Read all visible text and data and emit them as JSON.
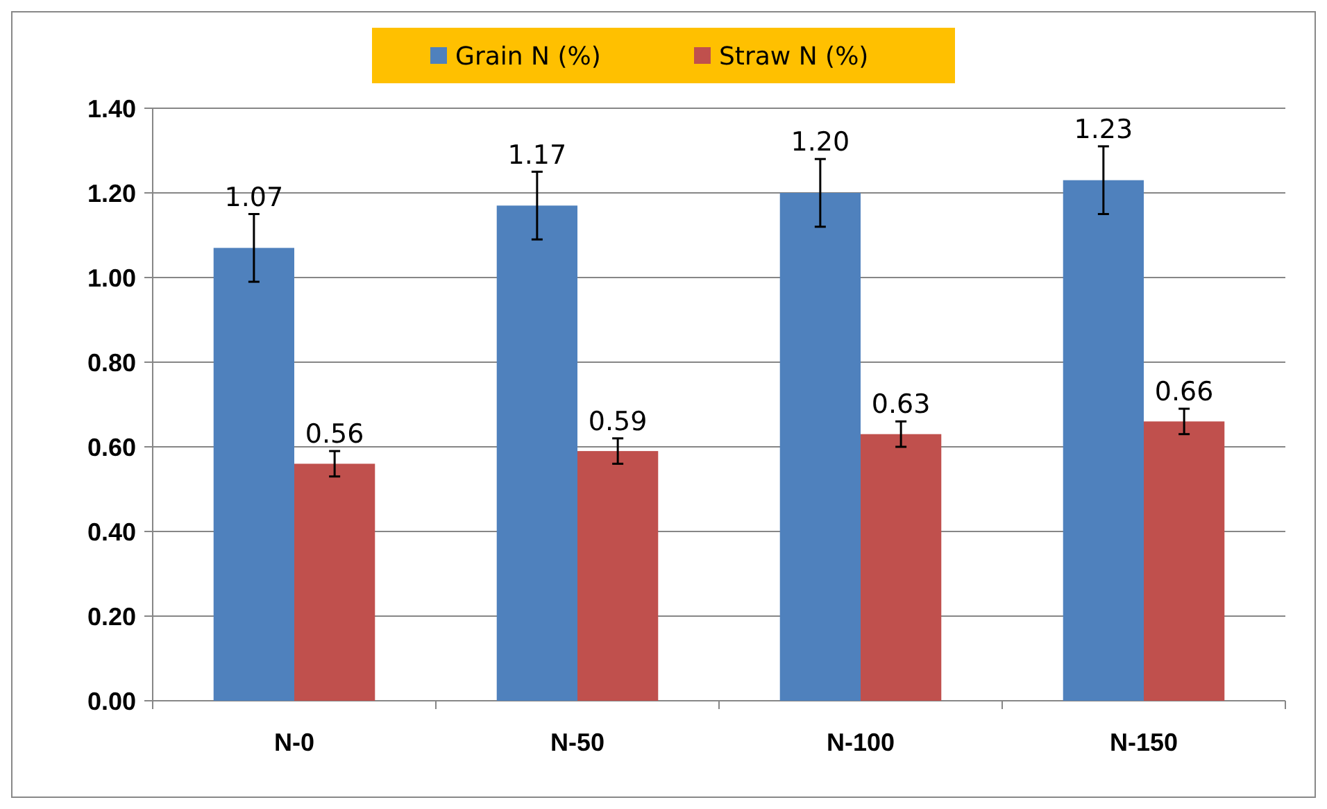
{
  "chart_data": {
    "type": "bar",
    "categories": [
      "N-0",
      "N-50",
      "N-100",
      "N-150"
    ],
    "series": [
      {
        "name": "Grain N (%)",
        "color": "#4f81bd",
        "values": [
          1.07,
          1.17,
          1.2,
          1.23
        ],
        "value_labels": [
          "1.07",
          "1.17",
          "1.20",
          "1.23"
        ],
        "errors": [
          0.08,
          0.08,
          0.08,
          0.08
        ]
      },
      {
        "name": "Straw N (%)",
        "color": "#c0504d",
        "values": [
          0.56,
          0.59,
          0.63,
          0.66
        ],
        "value_labels": [
          "0.56",
          "0.59",
          "0.63",
          "0.66"
        ],
        "errors": [
          0.03,
          0.03,
          0.03,
          0.03
        ]
      }
    ],
    "ylim": [
      0,
      1.4
    ],
    "yticks": [
      {
        "value": 0,
        "label": "0.00"
      },
      {
        "value": 0.2,
        "label": "0.20"
      },
      {
        "value": 0.4,
        "label": "0.40"
      },
      {
        "value": 0.6,
        "label": "0.60"
      },
      {
        "value": 0.8,
        "label": "0.80"
      },
      {
        "value": 1,
        "label": "1.00"
      },
      {
        "value": 1.2,
        "label": "1.20"
      },
      {
        "value": 1.4,
        "label": "1.40"
      }
    ],
    "grid": "y",
    "legend": "top"
  }
}
